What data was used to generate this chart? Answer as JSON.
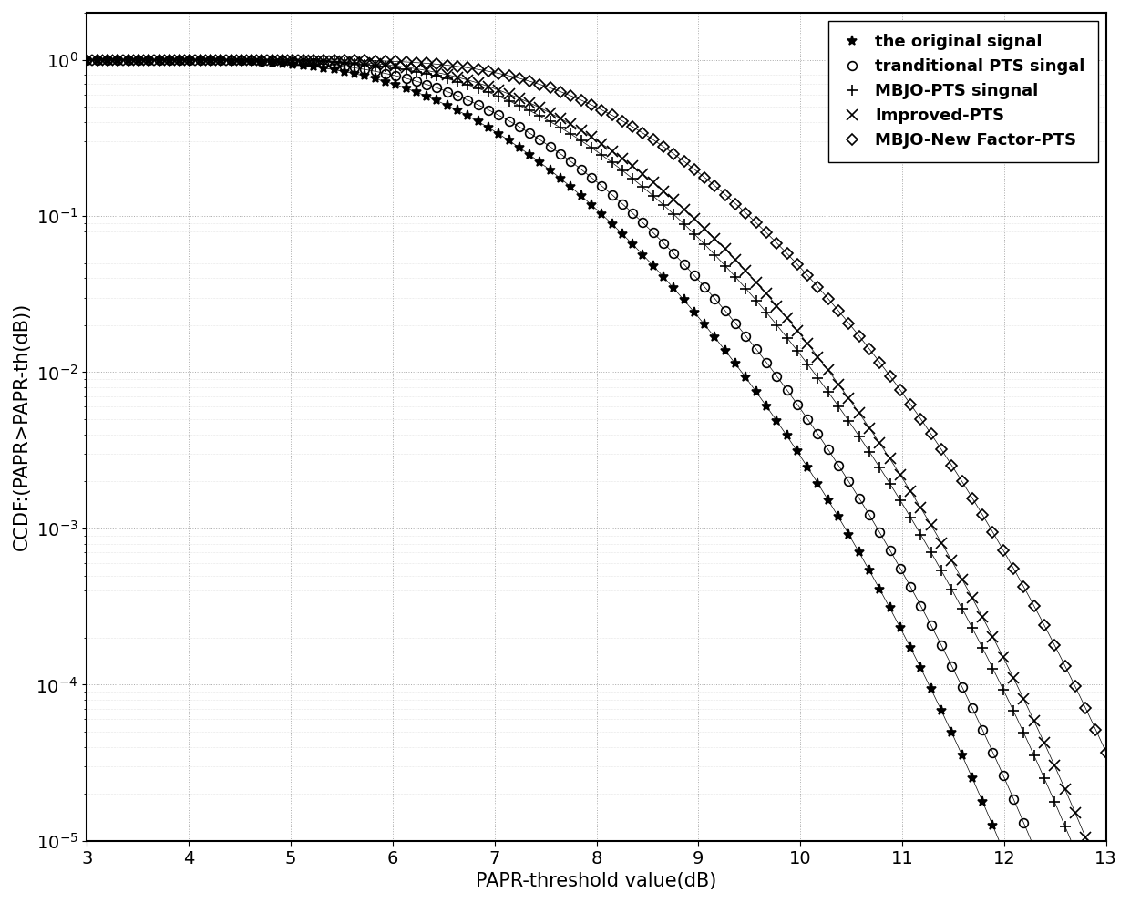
{
  "xlabel": "PAPR-threshold value(dB)",
  "ylabel": "CCDF:(PAPR>PAPR-th(dB))",
  "xlim": [
    3,
    13
  ],
  "ylim": [
    1e-05,
    2
  ],
  "x_ticks": [
    3,
    4,
    5,
    6,
    7,
    8,
    9,
    10,
    11,
    12,
    13
  ],
  "curves": [
    {
      "label": "the original signal",
      "marker": "*",
      "N": 64,
      "gamma_scale": 1.0,
      "ms": 8,
      "mfc": "k"
    },
    {
      "label": "tranditional PTS singal",
      "marker": "o",
      "N": 64,
      "gamma_scale": 0.93,
      "ms": 7,
      "mfc": "none"
    },
    {
      "label": "MBJO-PTS singnal",
      "marker": "+",
      "N": 64,
      "gamma_scale": 0.85,
      "ms": 9,
      "mfc": "k"
    },
    {
      "label": "Improved-PTS",
      "marker": "x",
      "N": 64,
      "gamma_scale": 0.82,
      "ms": 9,
      "mfc": "k"
    },
    {
      "label": "MBJO-New Factor-PTS",
      "marker": "D",
      "N": 64,
      "gamma_scale": 0.72,
      "ms": 6,
      "mfc": "none"
    }
  ],
  "background_color": "#ffffff",
  "legend_fontsize": 13,
  "axis_fontsize": 15,
  "tick_fontsize": 14
}
